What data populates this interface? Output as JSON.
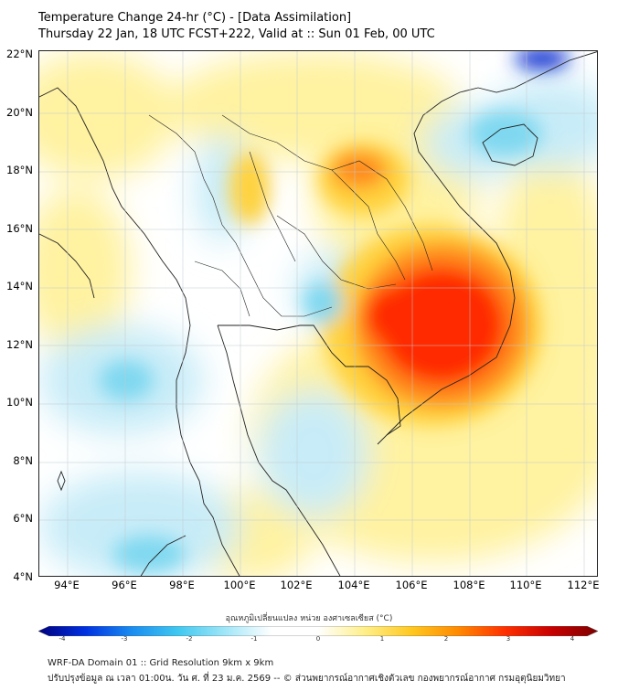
{
  "header": {
    "title_line1": "Temperature Change 24-hr (°C) - [Data Assimilation]",
    "title_line2": "Thursday 22 Jan, 18 UTC FCST+222, Valid at :: Sun 01 Feb, 00 UTC"
  },
  "map": {
    "lat_range": [
      4,
      22
    ],
    "lon_range": [
      93,
      112.5
    ],
    "lat_labels": [
      "22°N",
      "20°N",
      "18°N",
      "16°N",
      "14°N",
      "12°N",
      "10°N",
      "8°N",
      "6°N",
      "4°N"
    ],
    "lon_labels": [
      "94°E",
      "96°E",
      "98°E",
      "100°E",
      "102°E",
      "104°E",
      "106°E",
      "108°E",
      "110°E",
      "112°E"
    ],
    "colors": {
      "neutral": "#ffffff",
      "warm_light": "#fff2a0",
      "warm": "#ffd23c",
      "hot": "#ff8a1a",
      "very_hot": "#ff2a00",
      "cool_light": "#c8ecf8",
      "cool": "#7fd8f0",
      "cold": "#1030d0",
      "coast": "#222222"
    }
  },
  "colorbar": {
    "label": "อุณหภูมิเปลี่ยนแปลง หน่วย องศาเซลเซียส (°C)",
    "ticks": [
      "-4",
      "-3",
      "-2",
      "-1",
      "0",
      "1",
      "2",
      "3",
      "4"
    ],
    "min": -4,
    "max": 4,
    "stops": [
      "#00007f",
      "#0030e0",
      "#1a8cf0",
      "#40c8f0",
      "#a0e6f8",
      "#ffffff",
      "#ffffff",
      "#ffef8a",
      "#ffc820",
      "#ff8a00",
      "#ff3000",
      "#c80000",
      "#7f0000"
    ]
  },
  "footer": {
    "line1": "WRF-DA Domain 01 :: Grid Resolution 9km x 9km",
    "line2": "ปรับปรุงข้อมูล ณ เวลา 01:00น. วัน ศ. ที่ 23 ม.ค. 2569 -- © ส่วนพยากรณ์อากาศเชิงตัวเลข กองพยากรณ์อากาศ กรมอุตุนิยมวิทยา"
  }
}
